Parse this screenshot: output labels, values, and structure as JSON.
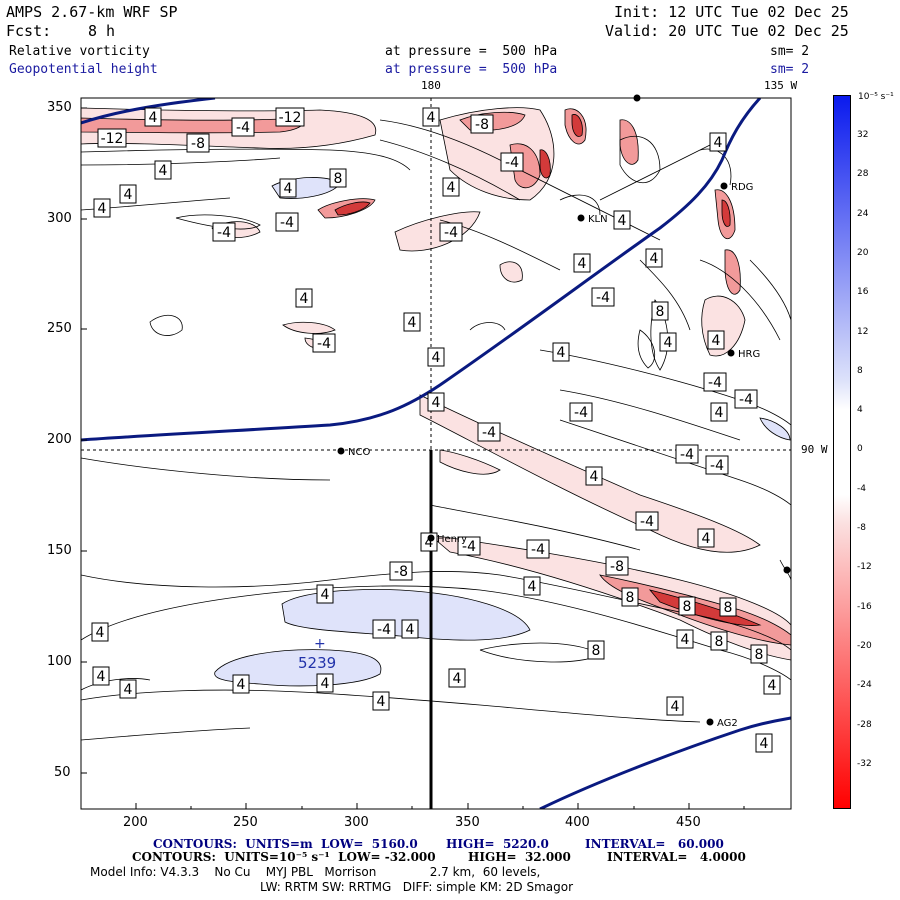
{
  "header": {
    "model": "AMPS 2.67-km WRF SP",
    "init": "Init: 12 UTC Tue 02 Dec 25",
    "fcst_label": "Fcst:",
    "fcst_value": "8 h",
    "valid": "Valid: 20 UTC Tue 02 Dec 25",
    "field1_name": "Relative vorticity",
    "field1_level": "at pressure =  500 hPa",
    "field1_sm": "sm= 2",
    "field2_name": "Geopotential height",
    "field2_level": "at pressure =  500 hPa",
    "field2_sm": "sm= 2"
  },
  "map": {
    "top_label_180": "180",
    "top_label_135w": "135 W",
    "right_label_90w": "90 W",
    "x_ticks": [
      "200",
      "250",
      "300",
      "350",
      "400",
      "450"
    ],
    "y_ticks": [
      "350",
      "300",
      "250",
      "200",
      "150",
      "100",
      "50"
    ],
    "height_center_label": "5239",
    "contour_labels": [
      "4",
      "-12",
      "-8",
      "-4",
      "-12",
      "4",
      "-8",
      "4",
      "4",
      "8",
      "-4",
      "4",
      "4",
      "4",
      "-4",
      "-4",
      "4",
      "-4",
      "4",
      "4",
      "4",
      "-4",
      "8",
      "4",
      "4",
      "-4",
      "4",
      "4",
      "4",
      "4",
      "-4",
      "-4",
      "-4",
      "4",
      "4",
      "-4",
      "-4",
      "-4",
      "4",
      "-4",
      "4",
      "-4",
      "-4",
      "-8",
      "-8",
      "4",
      "8",
      "8",
      "8",
      "4",
      "-4",
      "4",
      "8",
      "4",
      "8",
      "8",
      "4",
      "4",
      "4",
      "4",
      "4",
      "4",
      "4",
      "4",
      "4",
      "4",
      "4"
    ],
    "stations": [
      "NCO",
      "Henry",
      "KLN",
      "RDG",
      "HRG",
      "AG2"
    ],
    "colors": {
      "height_contour": "#0a1a80",
      "positive_fill": "#dfe3fa",
      "negative_fill_light": "#fbe2e2",
      "negative_fill_mid": "#f29a9a",
      "negative_fill_dark": "#d33a3a"
    }
  },
  "colorbar": {
    "unit": "10⁻⁵ s⁻¹",
    "labels": [
      "32",
      "28",
      "24",
      "20",
      "16",
      "12",
      "8",
      "4",
      "0",
      "-4",
      "-8",
      "-12",
      "-16",
      "-20",
      "-24",
      "-28",
      "-32"
    ]
  },
  "footer": {
    "line1_a": "CONTOURS:  UNITS=m  LOW=  5160.0",
    "line1_b": "HIGH=  5220.0",
    "line1_c": "INTERVAL=   60.000",
    "line2_a": "CONTOURS:  UNITS=10⁻⁵ s⁻¹  LOW= -32.000",
    "line2_b": "HIGH=  32.000",
    "line2_c": "INTERVAL=   4.0000",
    "line3": "Model Info: V4.3.3    No Cu    MYJ PBL   Morrison              2.7 km,  60 levels,",
    "line4": "LW: RRTM SW: RRTMG   DIFF: simple KM: 2D Smagor"
  }
}
